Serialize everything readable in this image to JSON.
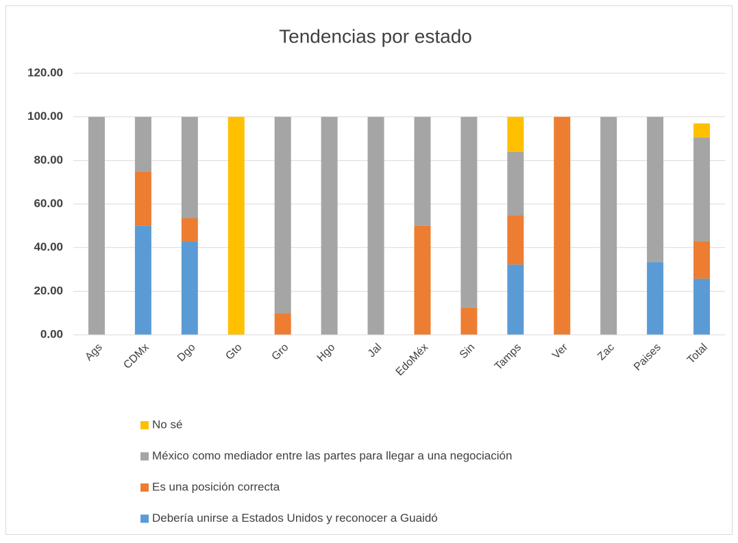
{
  "chart_data": {
    "type": "stacked_bar",
    "title": "Tendencias por estado",
    "categories": [
      "Ags",
      "CDMx",
      "Dgo",
      "Gto",
      "Gro",
      "Hgo",
      "Jal",
      "EdoMéx",
      "Sin",
      "Tamps",
      "Ver",
      "Zac",
      "Paises",
      "Total"
    ],
    "series": [
      {
        "name": "Debería unirse a Estados Unidos y reconocer a Guaidó",
        "color": "#5b9bd5",
        "values": [
          0,
          50,
          42.86,
          0,
          0,
          0,
          0,
          0,
          0,
          32.26,
          0,
          0,
          33.33,
          25.8
        ]
      },
      {
        "name": "Es una posición correcta",
        "color": "#ed7d31",
        "values": [
          0,
          25,
          10.71,
          0,
          10,
          0,
          0,
          50,
          12.5,
          22.58,
          100,
          0,
          0,
          17.2
        ]
      },
      {
        "name": "México como mediador entre las partes para llegar a una negociación",
        "color": "#a5a5a5",
        "values": [
          100,
          25,
          46.43,
          0,
          90,
          100,
          100,
          50,
          87.5,
          29.03,
          0,
          100,
          66.67,
          47.5
        ]
      },
      {
        "name": "No sé",
        "color": "#ffc000",
        "values": [
          0,
          0,
          0,
          100,
          0,
          0,
          0,
          0,
          0,
          16.13,
          0,
          0,
          0,
          6.5
        ]
      }
    ],
    "ylim": [
      0,
      120
    ],
    "yticks": [
      {
        "value": 0,
        "label": "0.00"
      },
      {
        "value": 20,
        "label": "20.00"
      },
      {
        "value": 40,
        "label": "40.00"
      },
      {
        "value": 60,
        "label": "60.00"
      },
      {
        "value": 80,
        "label": "80.00"
      },
      {
        "value": 100,
        "label": "100.00"
      },
      {
        "value": 120,
        "label": "120.00"
      }
    ],
    "grid": true,
    "legend": "bottom"
  }
}
